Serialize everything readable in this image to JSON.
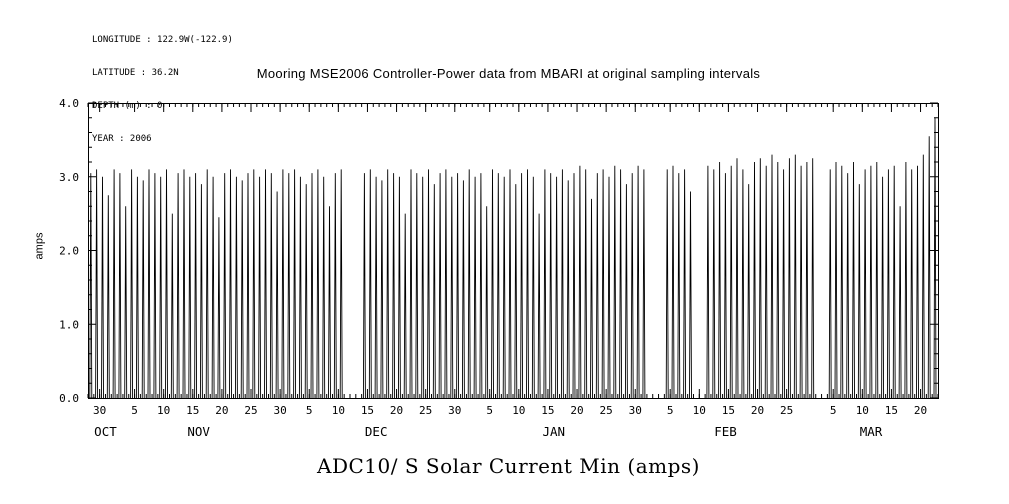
{
  "metadata": {
    "longitude": "LONGITUDE : 122.9W(-122.9)",
    "latitude": "LATITUDE : 36.2N",
    "depth": "DEPTH (m) : 0",
    "year": "YEAR : 2006"
  },
  "title": "Mooring MSE2006 Controller-Power data from MBARI at original sampling intervals",
  "bottom_title": "ADC10/ S Solar Current Min (amps)",
  "chart_data": {
    "type": "line",
    "title": "Mooring MSE2006 Controller-Power data from MBARI at original sampling intervals",
    "subtitle": "ADC10/ S Solar Current Min (amps)",
    "ylabel": "amps",
    "ylim": [
      0.0,
      4.0
    ],
    "y_minor_interval": 0.2,
    "grid": false,
    "legend": false,
    "line_color": "#000000",
    "background": "#ffffff",
    "y_major_ticks": [
      {
        "value": 0,
        "label": "0.0"
      },
      {
        "value": 1,
        "label": "1.0"
      },
      {
        "value": 2,
        "label": "2.0"
      },
      {
        "value": 3,
        "label": "3.0"
      },
      {
        "value": 4,
        "label": "4.0"
      }
    ],
    "x_total_days": 146,
    "x_major_ticks": [
      {
        "day": 2,
        "label": "30"
      },
      {
        "day": 8,
        "label": "5"
      },
      {
        "day": 13,
        "label": "10"
      },
      {
        "day": 18,
        "label": "15"
      },
      {
        "day": 23,
        "label": "20"
      },
      {
        "day": 28,
        "label": "25"
      },
      {
        "day": 33,
        "label": "30"
      },
      {
        "day": 38,
        "label": "5"
      },
      {
        "day": 43,
        "label": "10"
      },
      {
        "day": 48,
        "label": "15"
      },
      {
        "day": 53,
        "label": "20"
      },
      {
        "day": 58,
        "label": "25"
      },
      {
        "day": 63,
        "label": "30"
      },
      {
        "day": 69,
        "label": "5"
      },
      {
        "day": 74,
        "label": "10"
      },
      {
        "day": 79,
        "label": "15"
      },
      {
        "day": 84,
        "label": "20"
      },
      {
        "day": 89,
        "label": "25"
      },
      {
        "day": 94,
        "label": "30"
      },
      {
        "day": 100,
        "label": "5"
      },
      {
        "day": 105,
        "label": "10"
      },
      {
        "day": 110,
        "label": "15"
      },
      {
        "day": 115,
        "label": "20"
      },
      {
        "day": 120,
        "label": "25"
      },
      {
        "day": 128,
        "label": "5"
      },
      {
        "day": 133,
        "label": "10"
      },
      {
        "day": 138,
        "label": "15"
      },
      {
        "day": 143,
        "label": "20"
      }
    ],
    "x_month_labels": [
      {
        "label": "OCT",
        "center_day": 3
      },
      {
        "label": "NOV",
        "center_day": 19
      },
      {
        "label": "DEC",
        "center_day": 49.5
      },
      {
        "label": "JAN",
        "center_day": 80
      },
      {
        "label": "FEB",
        "center_day": 109.5
      },
      {
        "label": "MAR",
        "center_day": 134.5
      }
    ],
    "series": [
      {
        "name": "ADC10/ S Solar Current Min",
        "unit": "amps",
        "note": "daily solar-current spikes from 0 up to peak; 0 = data gap",
        "daily_peak_values": [
          3.05,
          3.1,
          3.0,
          2.75,
          3.1,
          3.05,
          2.6,
          3.1,
          3.0,
          2.95,
          3.1,
          3.05,
          3.0,
          3.1,
          2.5,
          3.05,
          3.1,
          3.0,
          3.05,
          2.9,
          3.1,
          3.0,
          2.45,
          3.05,
          3.1,
          3.0,
          2.95,
          3.05,
          3.1,
          3.0,
          3.1,
          3.05,
          2.8,
          3.1,
          3.05,
          3.1,
          3.0,
          2.9,
          3.05,
          3.1,
          3.0,
          2.6,
          3.05,
          3.1,
          0,
          0,
          0,
          3.05,
          3.1,
          3.0,
          2.95,
          3.1,
          3.05,
          3.0,
          2.5,
          3.1,
          3.05,
          3.0,
          3.1,
          2.9,
          3.05,
          3.1,
          3.0,
          3.05,
          2.95,
          3.1,
          3.0,
          3.05,
          2.6,
          3.1,
          3.05,
          3.0,
          3.1,
          2.9,
          3.05,
          3.1,
          3.0,
          2.5,
          3.1,
          3.05,
          3.0,
          3.1,
          2.95,
          3.05,
          3.15,
          3.1,
          2.7,
          3.05,
          3.1,
          3.0,
          3.15,
          3.1,
          2.9,
          3.05,
          3.15,
          3.1,
          0,
          0,
          0,
          3.1,
          3.15,
          3.05,
          3.1,
          2.8,
          0,
          0,
          3.15,
          3.1,
          3.2,
          3.05,
          3.15,
          3.25,
          3.1,
          2.9,
          3.2,
          3.25,
          3.15,
          3.3,
          3.2,
          3.1,
          3.25,
          3.3,
          3.15,
          3.2,
          3.25,
          0,
          0,
          3.1,
          3.2,
          3.15,
          3.05,
          3.2,
          2.9,
          3.1,
          3.15,
          3.2,
          3.0,
          3.1,
          3.15,
          2.6,
          3.2,
          3.1,
          3.15,
          3.3,
          3.55,
          3.8
        ]
      }
    ]
  }
}
